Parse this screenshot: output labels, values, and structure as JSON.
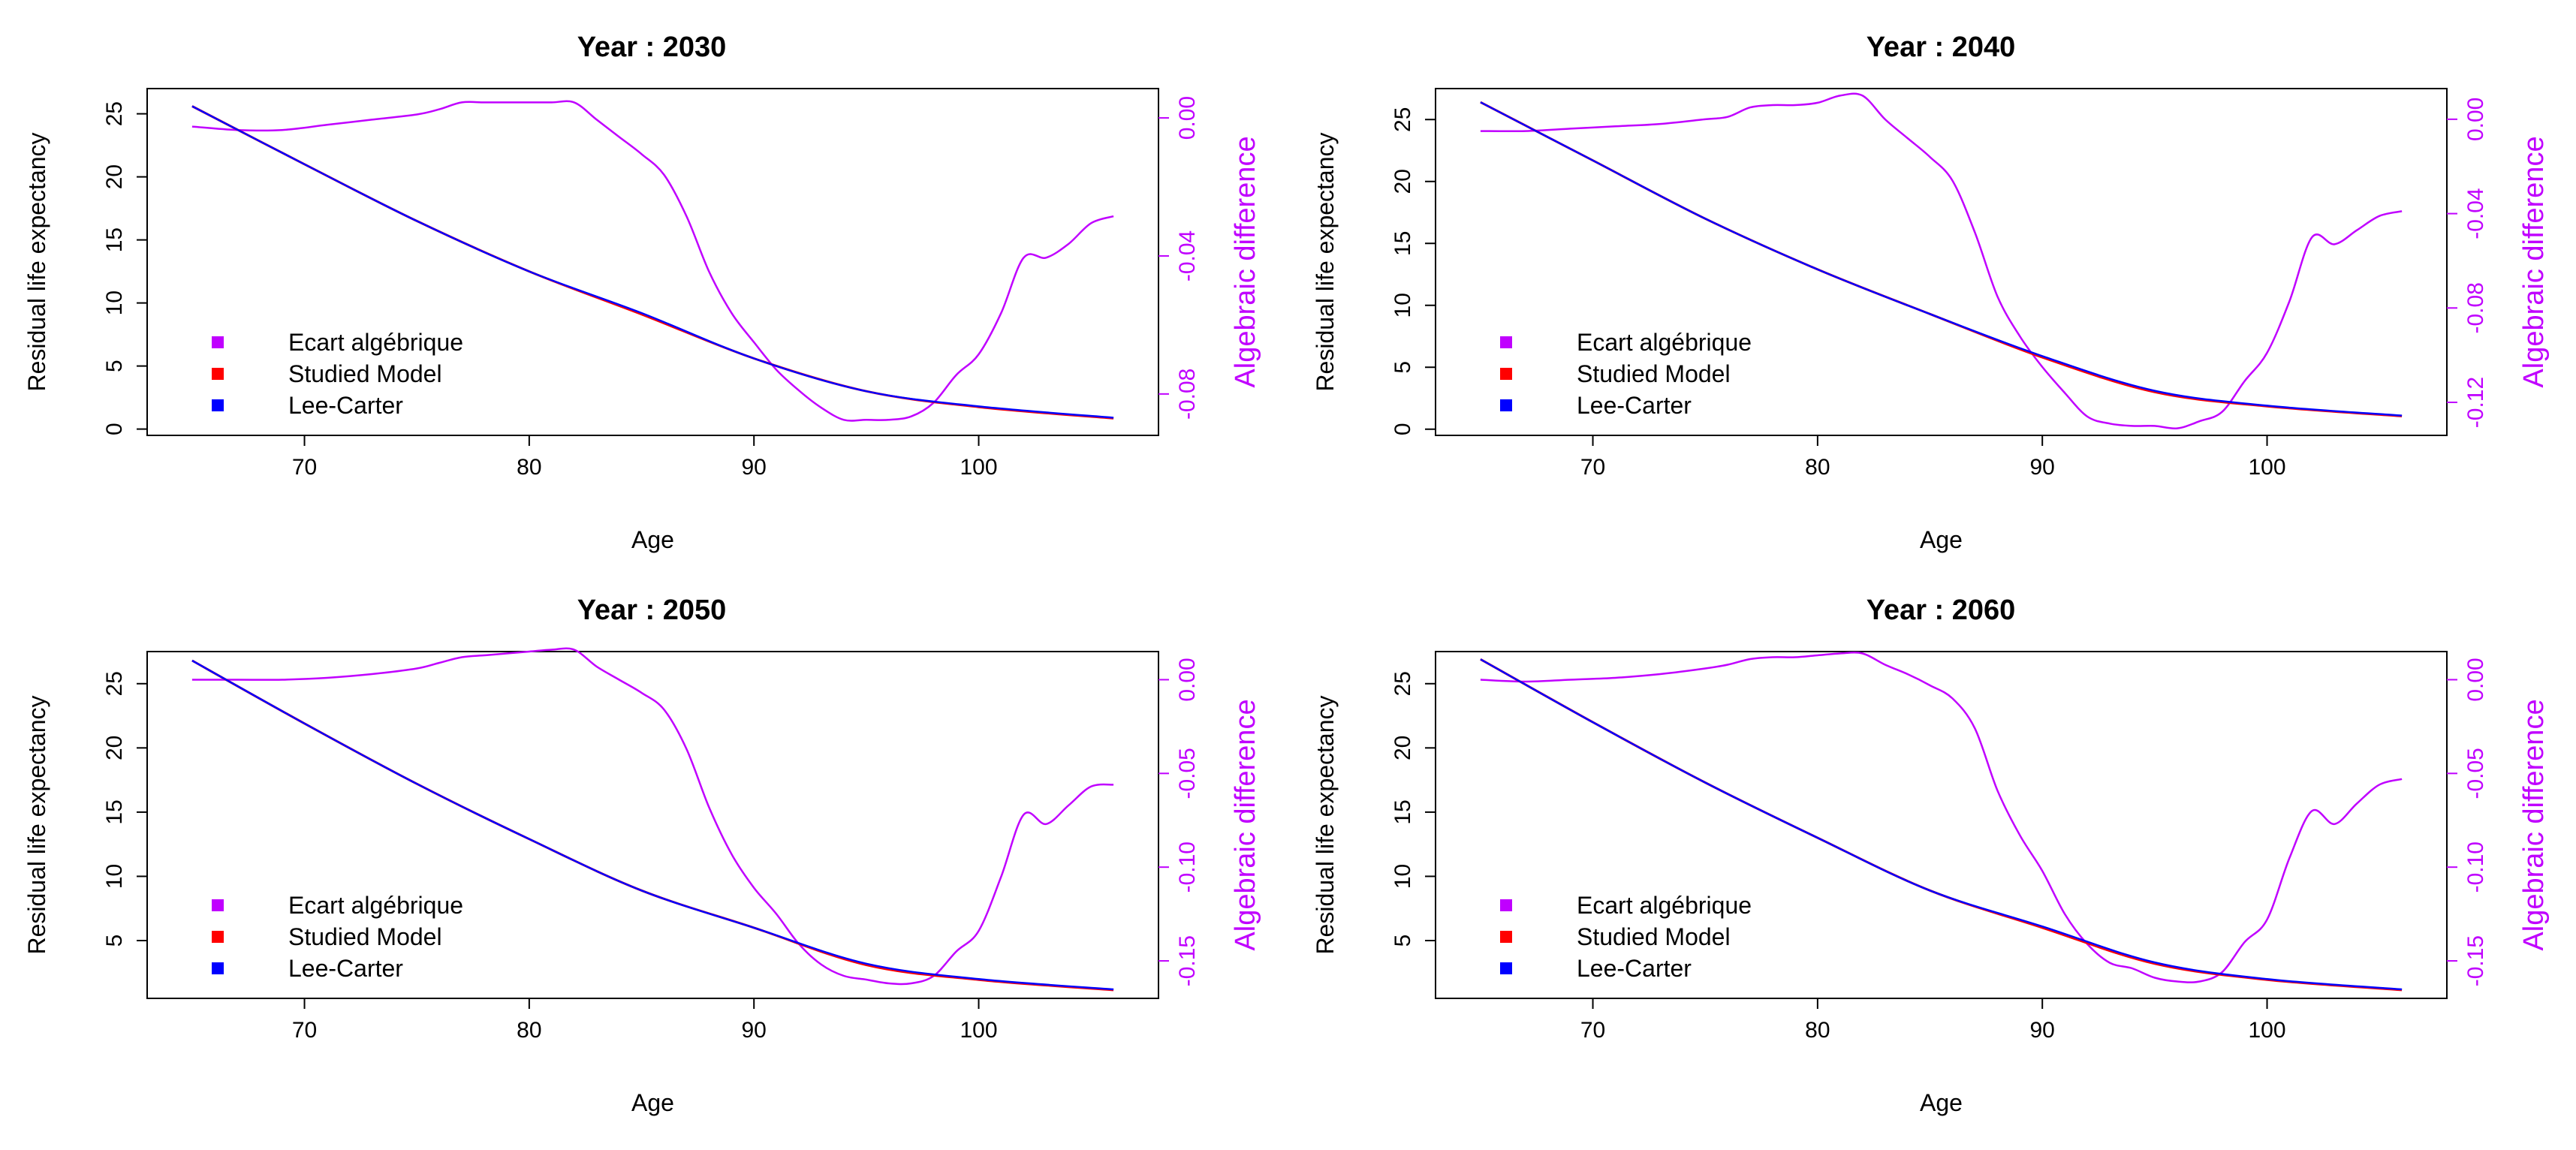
{
  "colors": {
    "lee_carter": "#0000ff",
    "studied_model": "#ff0000",
    "algebraic": "#c000ff",
    "axis": "#000000"
  },
  "chart_data": [
    {
      "type": "line",
      "title": "Year : 2030",
      "xlabel": "Age",
      "ylabel": "Residual life expectancy",
      "y2label": "Algebraic difference",
      "xlim": [
        63,
        108
      ],
      "ylim": [
        -0.5,
        27
      ],
      "y2lim": [
        -0.092,
        0.0085
      ],
      "xticks": [
        70,
        80,
        90,
        100
      ],
      "yticks": [
        0,
        5,
        10,
        15,
        20,
        25
      ],
      "y2ticks": [
        "0.00",
        "-0.04",
        "-0.08"
      ],
      "legend": [
        "Ecart algébrique",
        "Studied Model",
        "Lee-Carter"
      ],
      "legend_position": "bottom-left",
      "x": [
        65,
        70,
        75,
        80,
        85,
        90,
        95,
        100,
        106
      ],
      "series": [
        {
          "name": "Lee-Carter",
          "values": [
            25.6,
            21.0,
            16.5,
            12.5,
            9.2,
            5.6,
            3.0,
            1.8,
            0.9
          ]
        },
        {
          "name": "Studied Model",
          "values": [
            25.6,
            21.0,
            16.5,
            12.5,
            9.1,
            5.6,
            3.0,
            1.75,
            0.85
          ]
        }
      ],
      "diff_x": [
        65,
        67,
        69,
        71,
        73,
        75,
        76,
        77,
        78,
        79,
        80,
        81,
        82,
        83,
        84,
        85,
        86,
        87,
        88,
        89,
        90,
        91,
        92,
        93,
        94,
        95,
        96,
        97,
        98,
        99,
        100,
        101,
        102,
        103,
        104,
        105,
        106
      ],
      "diff": [
        -0.0025,
        -0.0035,
        -0.0035,
        -0.002,
        -0.0005,
        0.001,
        0.0025,
        0.0045,
        0.0045,
        0.0045,
        0.0045,
        0.0045,
        0.0045,
        -0.0005,
        -0.0055,
        -0.0105,
        -0.0165,
        -0.0285,
        -0.0445,
        -0.0565,
        -0.065,
        -0.073,
        -0.079,
        -0.084,
        -0.0875,
        -0.0875,
        -0.0875,
        -0.0865,
        -0.0825,
        -0.0745,
        -0.0685,
        -0.0565,
        -0.0405,
        -0.0405,
        -0.0365,
        -0.0305,
        -0.0285
      ]
    },
    {
      "type": "line",
      "title": "Year : 2040",
      "xlabel": "Age",
      "ylabel": "Residual life expectancy",
      "y2label": "Algebraic difference",
      "xlim": [
        63,
        108
      ],
      "ylim": [
        -0.5,
        27.5
      ],
      "y2lim": [
        -0.134,
        0.013
      ],
      "xticks": [
        70,
        80,
        90,
        100
      ],
      "yticks": [
        0,
        5,
        10,
        15,
        20,
        25
      ],
      "y2ticks": [
        "0.00",
        "-0.04",
        "-0.08",
        "-0.12"
      ],
      "legend": [
        "Ecart algébrique",
        "Studied Model",
        "Lee-Carter"
      ],
      "legend_position": "bottom-left",
      "x": [
        65,
        70,
        75,
        80,
        85,
        90,
        95,
        100,
        106
      ],
      "series": [
        {
          "name": "Lee-Carter",
          "values": [
            26.4,
            21.7,
            17.0,
            12.9,
            9.3,
            5.9,
            3.1,
            1.9,
            1.1
          ]
        },
        {
          "name": "Studied Model",
          "values": [
            26.4,
            21.7,
            17.0,
            12.9,
            9.3,
            5.8,
            3.0,
            1.85,
            1.05
          ]
        }
      ],
      "diff_x": [
        65,
        67,
        69,
        71,
        73,
        75,
        76,
        77,
        78,
        79,
        80,
        81,
        82,
        83,
        84,
        85,
        86,
        87,
        88,
        89,
        90,
        91,
        92,
        93,
        94,
        95,
        96,
        97,
        98,
        99,
        100,
        101,
        102,
        103,
        104,
        105,
        106
      ],
      "diff": [
        -0.005,
        -0.005,
        -0.004,
        -0.003,
        -0.002,
        0.0,
        0.001,
        0.005,
        0.006,
        0.006,
        0.007,
        0.01,
        0.01,
        0.0,
        -0.008,
        -0.016,
        -0.026,
        -0.048,
        -0.075,
        -0.092,
        -0.105,
        -0.116,
        -0.126,
        -0.129,
        -0.13,
        -0.13,
        -0.131,
        -0.128,
        -0.124,
        -0.111,
        -0.099,
        -0.077,
        -0.05,
        -0.053,
        -0.047,
        -0.041,
        -0.039
      ]
    },
    {
      "type": "line",
      "title": "Year : 2050",
      "xlabel": "Age",
      "ylabel": "Residual life expectancy",
      "y2label": "Algebraic difference",
      "xlim": [
        63,
        108
      ],
      "ylim": [
        0.5,
        27.5
      ],
      "y2lim": [
        -0.17,
        0.015
      ],
      "xticks": [
        70,
        80,
        90,
        100
      ],
      "yticks": [
        5,
        10,
        15,
        20,
        25
      ],
      "y2ticks": [
        "0.00",
        "-0.05",
        "-0.10",
        "-0.15"
      ],
      "legend": [
        "Ecart algébrique",
        "Studied Model",
        "Lee-Carter"
      ],
      "legend_position": "bottom-left",
      "x": [
        65,
        70,
        75,
        80,
        85,
        90,
        95,
        100,
        106
      ],
      "series": [
        {
          "name": "Lee-Carter",
          "values": [
            26.8,
            21.9,
            17.2,
            12.9,
            8.9,
            6.0,
            3.2,
            2.0,
            1.2
          ]
        },
        {
          "name": "Studied Model",
          "values": [
            26.8,
            21.9,
            17.2,
            12.9,
            8.9,
            6.0,
            3.1,
            1.95,
            1.15
          ]
        }
      ],
      "diff_x": [
        65,
        67,
        69,
        71,
        73,
        75,
        76,
        77,
        78,
        79,
        80,
        81,
        82,
        83,
        84,
        85,
        86,
        87,
        88,
        89,
        90,
        91,
        92,
        93,
        94,
        95,
        96,
        97,
        98,
        99,
        100,
        101,
        102,
        103,
        104,
        105,
        106
      ],
      "diff": [
        0.0,
        0.0,
        0.0,
        0.001,
        0.003,
        0.006,
        0.009,
        0.012,
        0.013,
        0.014,
        0.015,
        0.016,
        0.016,
        0.007,
        0.0,
        -0.007,
        -0.016,
        -0.037,
        -0.068,
        -0.093,
        -0.111,
        -0.125,
        -0.141,
        -0.152,
        -0.158,
        -0.16,
        -0.162,
        -0.162,
        -0.158,
        -0.145,
        -0.134,
        -0.105,
        -0.072,
        -0.077,
        -0.067,
        -0.057,
        -0.056
      ]
    },
    {
      "type": "line",
      "title": "Year : 2060",
      "xlabel": "Age",
      "ylabel": "Residual life expectancy",
      "y2label": "Algebraic difference",
      "xlim": [
        63,
        108
      ],
      "ylim": [
        0.5,
        27.5
      ],
      "y2lim": [
        -0.17,
        0.015
      ],
      "xticks": [
        70,
        80,
        90,
        100
      ],
      "yticks": [
        5,
        10,
        15,
        20,
        25
      ],
      "y2ticks": [
        "0.00",
        "-0.05",
        "-0.10",
        "-0.15"
      ],
      "legend": [
        "Ecart algébrique",
        "Studied Model",
        "Lee-Carter"
      ],
      "legend_position": "bottom-left",
      "x": [
        65,
        70,
        75,
        80,
        85,
        90,
        95,
        100,
        106
      ],
      "series": [
        {
          "name": "Lee-Carter",
          "values": [
            26.9,
            22.0,
            17.3,
            13.0,
            8.9,
            6.1,
            3.3,
            2.0,
            1.2
          ]
        },
        {
          "name": "Studied Model",
          "values": [
            26.9,
            22.0,
            17.3,
            13.0,
            8.9,
            6.0,
            3.2,
            1.95,
            1.15
          ]
        }
      ],
      "diff_x": [
        65,
        67,
        69,
        71,
        73,
        75,
        76,
        77,
        78,
        79,
        80,
        81,
        82,
        83,
        84,
        85,
        86,
        87,
        88,
        89,
        90,
        91,
        92,
        93,
        94,
        95,
        96,
        97,
        98,
        99,
        100,
        101,
        102,
        103,
        104,
        105,
        106
      ],
      "diff": [
        0.0,
        -0.001,
        0.0,
        0.001,
        0.003,
        0.006,
        0.008,
        0.011,
        0.012,
        0.012,
        0.013,
        0.014,
        0.014,
        0.008,
        0.003,
        -0.003,
        -0.01,
        -0.026,
        -0.059,
        -0.083,
        -0.102,
        -0.125,
        -0.141,
        -0.151,
        -0.154,
        -0.159,
        -0.161,
        -0.161,
        -0.156,
        -0.14,
        -0.128,
        -0.095,
        -0.07,
        -0.077,
        -0.066,
        -0.056,
        -0.053
      ]
    }
  ]
}
